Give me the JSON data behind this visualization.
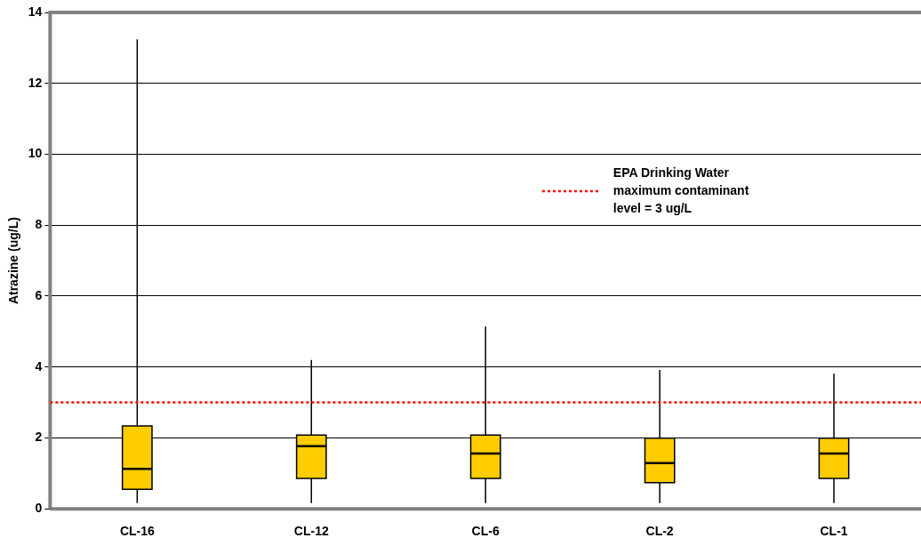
{
  "chart_data": {
    "type": "box",
    "ylabel": "Atrazine (ug/L)",
    "categories": [
      "CL-16",
      "CL-12",
      "CL-6",
      "CL-2",
      "CL-1"
    ],
    "boxes": [
      {
        "low": 0.16,
        "q1": 0.55,
        "median": 1.13,
        "q3": 2.34,
        "high": 13.24
      },
      {
        "low": 0.16,
        "q1": 0.86,
        "median": 1.77,
        "q3": 2.08,
        "high": 4.2
      },
      {
        "low": 0.16,
        "q1": 0.86,
        "median": 1.56,
        "q3": 2.08,
        "high": 5.14
      },
      {
        "low": 0.16,
        "q1": 0.74,
        "median": 1.29,
        "q3": 1.99,
        "high": 3.92
      },
      {
        "low": 0.16,
        "q1": 0.86,
        "median": 1.56,
        "q3": 1.99,
        "high": 3.81
      }
    ],
    "color": "#ffcc00",
    "ylim": [
      0,
      14
    ],
    "yticks": [
      0,
      2,
      4,
      6,
      8,
      10,
      12,
      14
    ],
    "grid": "y",
    "ref_lines": [
      {
        "axis": "y",
        "value": 3,
        "label": "EPA Drinking Water maximum contaminant level = 3 ug/L",
        "color": "#ff0000",
        "line_style": "dotted"
      }
    ]
  }
}
